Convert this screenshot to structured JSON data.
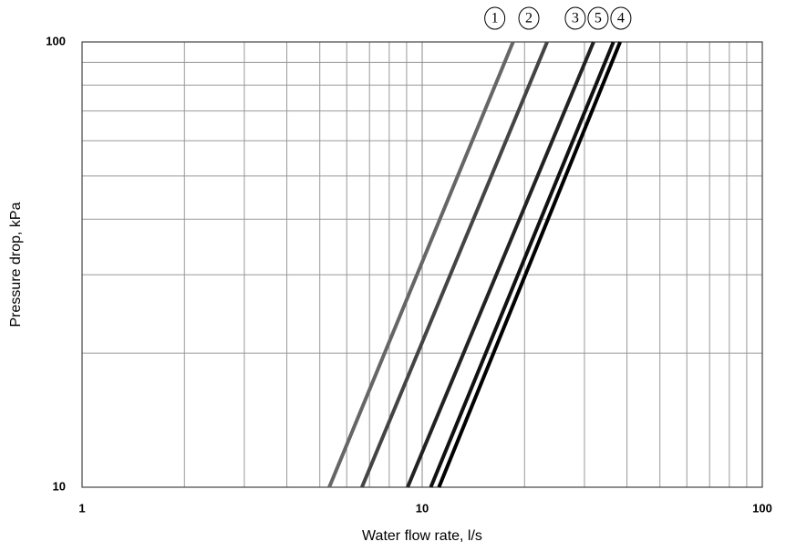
{
  "chart_data": {
    "type": "line",
    "x_label": "Water flow rate, l/s",
    "y_label": "Pressure drop, kPa",
    "xscale": "log",
    "yscale": "log",
    "grid": true,
    "xlim": [
      1,
      100
    ],
    "ylim": [
      10,
      100
    ],
    "xticks": [
      1,
      10,
      100
    ],
    "yticks": [
      10,
      100
    ],
    "series": [
      {
        "name": "1",
        "color": "#666666",
        "x": [
          5.33,
          18.5
        ],
        "values": [
          10,
          100
        ]
      },
      {
        "name": "2",
        "color": "#444444",
        "x": [
          6.65,
          23.3
        ],
        "values": [
          10,
          100
        ]
      },
      {
        "name": "3",
        "color": "#222222",
        "x": [
          9.06,
          31.9
        ],
        "values": [
          10,
          100
        ]
      },
      {
        "name": "5",
        "color": "#111111",
        "x": [
          10.6,
          36.5
        ],
        "values": [
          10,
          100
        ]
      },
      {
        "name": "4",
        "color": "#000000",
        "x": [
          11.2,
          38.2
        ],
        "values": [
          10,
          100
        ]
      }
    ]
  }
}
